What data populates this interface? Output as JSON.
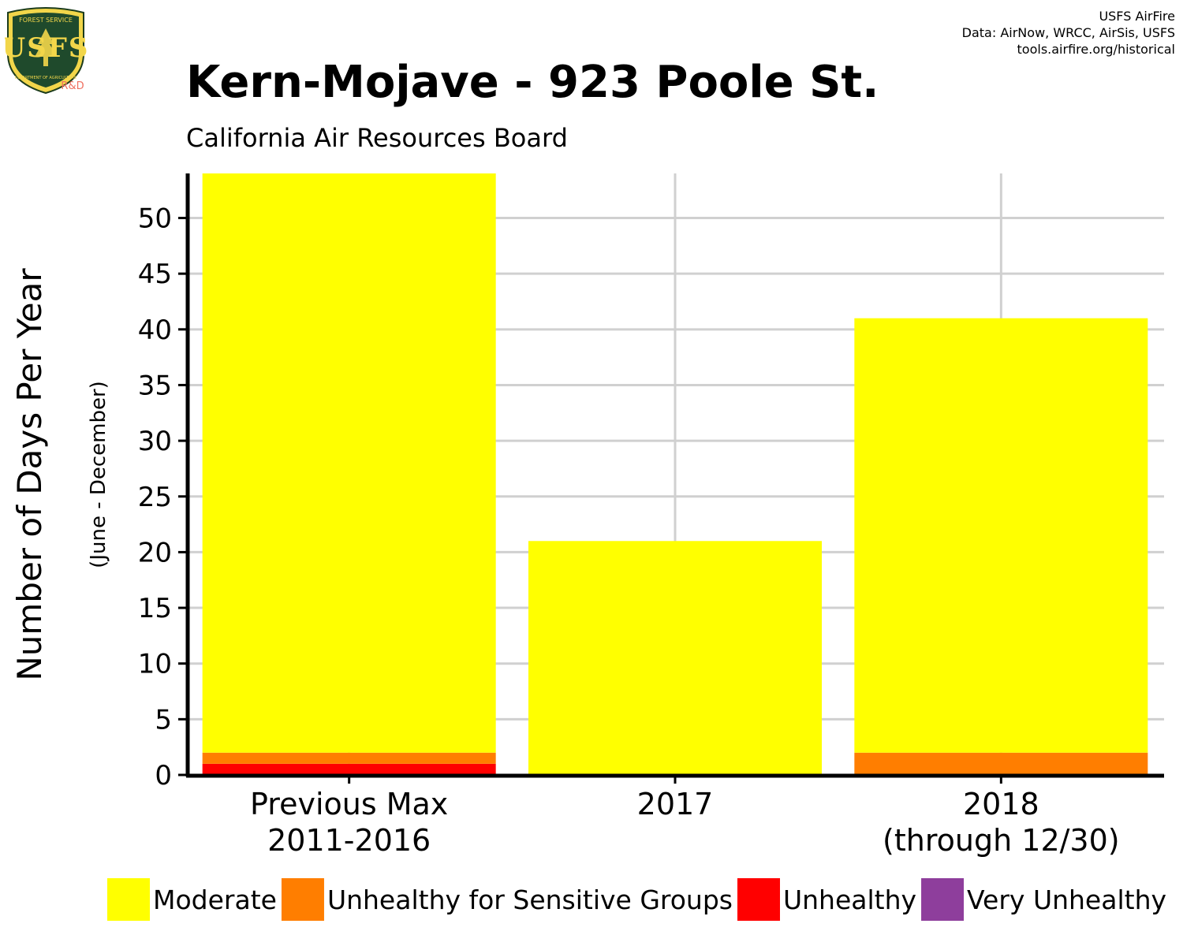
{
  "header": {
    "title": "Kern-Mojave - 923 Poole St.",
    "subtitle": "California Air Resources Board",
    "credits": [
      "USFS AirFire",
      "Data: AirNow, WRCC, AirSis, USFS",
      "tools.airfire.org/historical"
    ],
    "logo": {
      "top_text": "FOREST SERVICE",
      "letters": "USFS",
      "bottom_text": "DEPARTMENT OF AGRICULTURE",
      "badge": "R&D"
    }
  },
  "chart_data": {
    "type": "bar",
    "stacked": true,
    "ylabel": "Number of Days Per Year",
    "ylabel_sub": "(June - December)",
    "ylim": [
      0,
      54
    ],
    "yticks": [
      0,
      5,
      10,
      15,
      20,
      25,
      30,
      35,
      40,
      45,
      50
    ],
    "grid": true,
    "categories": [
      [
        "Previous Max",
        "2011-2016"
      ],
      [
        "2017"
      ],
      [
        "2018",
        "(through 12/30)"
      ]
    ],
    "series": [
      {
        "name": "Very Unhealthy",
        "color": "#8E3E9C",
        "values": [
          0,
          0,
          0
        ]
      },
      {
        "name": "Unhealthy",
        "color": "#FF0000",
        "values": [
          1,
          0,
          0
        ]
      },
      {
        "name": "Unhealthy for Sensitive Groups",
        "color": "#FF7E00",
        "values": [
          1,
          0,
          2
        ]
      },
      {
        "name": "Moderate",
        "color": "#FFFF00",
        "values": [
          52,
          21,
          39
        ]
      }
    ],
    "legend_order": [
      "Moderate",
      "Unhealthy for Sensitive Groups",
      "Unhealthy",
      "Very Unhealthy"
    ],
    "legend_position": "bottom"
  }
}
